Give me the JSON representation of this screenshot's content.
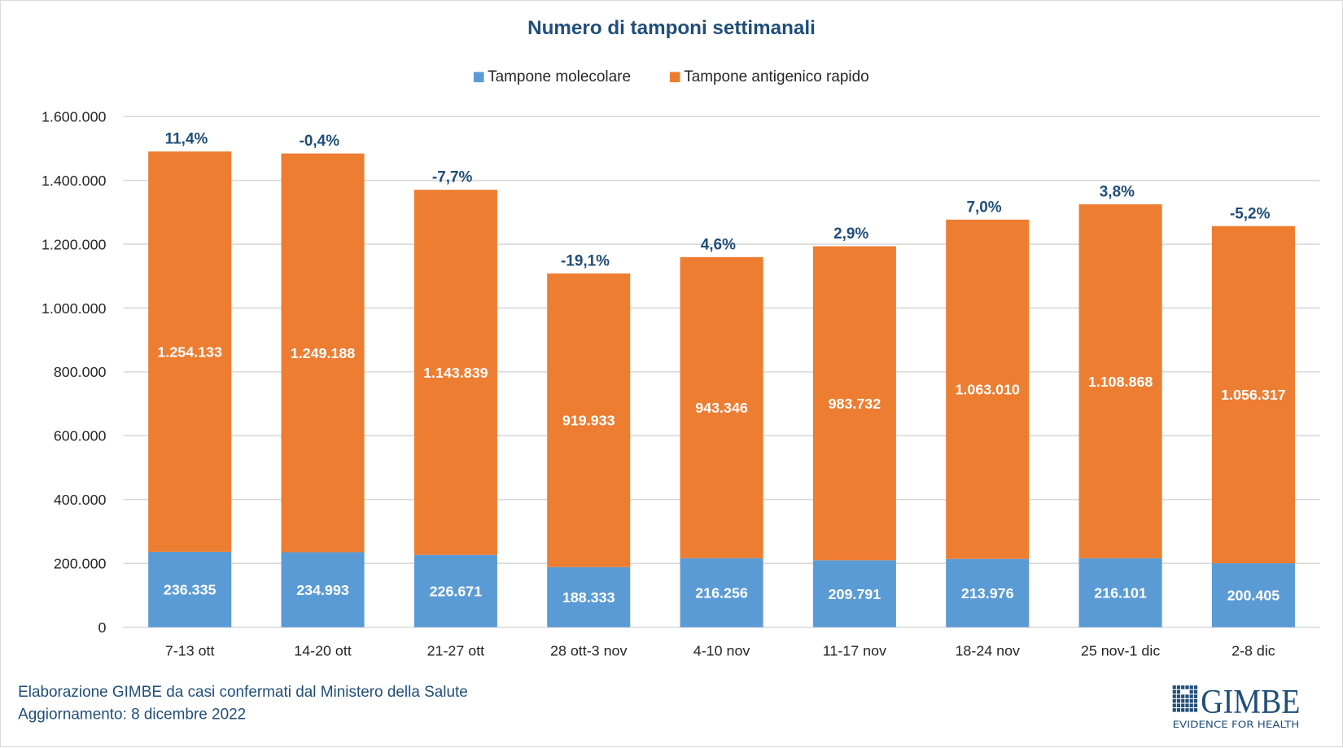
{
  "chart_data": {
    "type": "bar",
    "stacked": true,
    "title": "Numero di tamponi settimanali",
    "xlabel": "",
    "ylabel": "",
    "ylim": [
      0,
      1600000
    ],
    "yticks": [
      0,
      200000,
      400000,
      600000,
      800000,
      1000000,
      1200000,
      1400000,
      1600000
    ],
    "ytick_labels": [
      "0",
      "200.000",
      "400.000",
      "600.000",
      "800.000",
      "1.000.000",
      "1.200.000",
      "1.400.000",
      "1.600.000"
    ],
    "grid": true,
    "legend_position": "top",
    "categories": [
      "7-13 ott",
      "14-20 ott",
      "21-27 ott",
      "28 ott-3 nov",
      "4-10 nov",
      "11-17 nov",
      "18-24 nov",
      "25 nov-1 dic",
      "2-8 dic"
    ],
    "series": [
      {
        "name": "Tampone molecolare",
        "color": "#5b9bd5",
        "values": [
          236335,
          234993,
          226671,
          188333,
          216256,
          209791,
          213976,
          216101,
          200405
        ],
        "labels": [
          "236.335",
          "234.993",
          "226.671",
          "188.333",
          "216.256",
          "209.791",
          "213.976",
          "216.101",
          "200.405"
        ]
      },
      {
        "name": "Tampone antigenico rapido",
        "color": "#ed7d31",
        "values": [
          1254133,
          1249188,
          1143839,
          919933,
          943346,
          983732,
          1063010,
          1108868,
          1056317
        ],
        "labels": [
          "1.254.133",
          "1.249.188",
          "1.143.839",
          "919.933",
          "943.346",
          "983.732",
          "1.063.010",
          "1.108.868",
          "1.056.317"
        ]
      }
    ],
    "change_labels": [
      "11,4%",
      "-0,4%",
      "-7,7%",
      "-19,1%",
      "4,6%",
      "2,9%",
      "7,0%",
      "3,8%",
      "-5,2%"
    ]
  },
  "footer": {
    "source": "Elaborazione GIMBE da casi confermati dal Ministero della Salute",
    "updated": "Aggiornamento: 8 dicembre 2022"
  },
  "logo": {
    "name": "GIMBE",
    "tagline": "EVIDENCE FOR HEALTH",
    "color": "#1f4e79"
  }
}
